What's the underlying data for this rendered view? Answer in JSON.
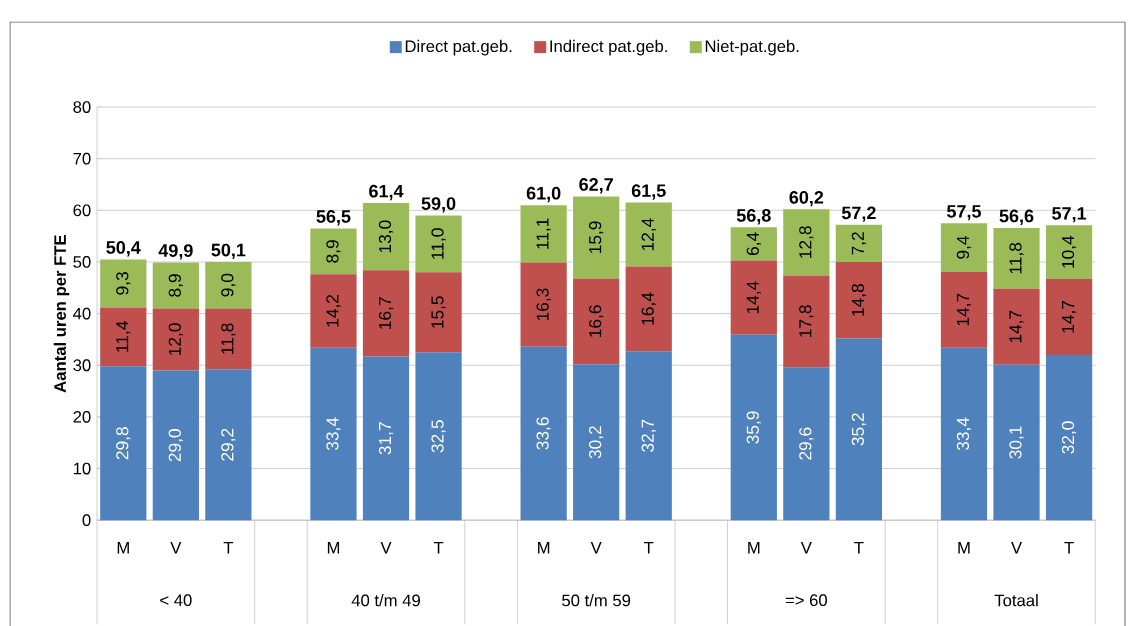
{
  "chart_data": {
    "type": "bar",
    "stacked": true,
    "categories": [
      "M",
      "V",
      "T",
      null,
      "M",
      "V",
      "T",
      null,
      "M",
      "V",
      "T",
      null,
      "M",
      "V",
      "T",
      null,
      "M",
      "V",
      "T"
    ],
    "annotations": [
      "< 40",
      "40 t/m 49",
      "50 t/m 59",
      "=> 60",
      "Totaal"
    ],
    "ylabel": "Aantal uren per FTE",
    "ylim": [
      0,
      80
    ],
    "yticks": [
      0,
      10,
      20,
      30,
      40,
      50,
      60,
      70,
      80
    ],
    "grid": "y",
    "legend": "top",
    "series": [
      {
        "name": "Direct pat.geb.",
        "color": "#4f81bd",
        "values": [
          29.8,
          29.0,
          29.2,
          null,
          33.4,
          31.7,
          32.5,
          null,
          33.6,
          30.2,
          32.7,
          null,
          35.9,
          29.6,
          35.2,
          null,
          33.4,
          30.1,
          32.0
        ],
        "value_labels": [
          "29,8",
          "29,0",
          "29,2",
          null,
          "33,4",
          "31,7",
          "32,5",
          null,
          "33,6",
          "30,2",
          "32,7",
          null,
          "35,9",
          "29,6",
          "35,2",
          null,
          "33,4",
          "30,1",
          "32,0"
        ]
      },
      {
        "name": "Indirect pat.geb.",
        "color": "#c0504d",
        "values": [
          11.4,
          12.0,
          11.8,
          null,
          14.2,
          16.7,
          15.5,
          null,
          16.3,
          16.6,
          16.4,
          null,
          14.4,
          17.8,
          14.8,
          null,
          14.7,
          14.7,
          14.7
        ],
        "value_labels": [
          "11,4",
          "12,0",
          "11,8",
          null,
          "14,2",
          "16,7",
          "15,5",
          null,
          "16,3",
          "16,6",
          "16,4",
          null,
          "14,4",
          "17,8",
          "14,8",
          null,
          "14,7",
          "14,7",
          "14,7"
        ]
      },
      {
        "name": "Niet-pat.geb.",
        "color": "#9bbb59",
        "values": [
          9.3,
          8.9,
          9.0,
          null,
          8.9,
          13.0,
          11.0,
          null,
          11.1,
          15.9,
          12.4,
          null,
          6.4,
          12.8,
          7.2,
          null,
          9.4,
          11.8,
          10.4
        ],
        "value_labels": [
          "9,3",
          "8,9",
          "9,0",
          null,
          "8,9",
          "13,0",
          "11,0",
          null,
          "11,1",
          "15,9",
          "12,4",
          null,
          "6,4",
          "12,8",
          "7,2",
          null,
          "9,4",
          "11,8",
          "10,4"
        ]
      }
    ],
    "totals": [
      "50,4",
      "49,9",
      "50,1",
      null,
      "56,5",
      "61,4",
      "59,0",
      null,
      "61,0",
      "62,7",
      "61,5",
      null,
      "56,8",
      "60,2",
      "57,2",
      null,
      "57,5",
      "56,6",
      "57,1"
    ]
  }
}
